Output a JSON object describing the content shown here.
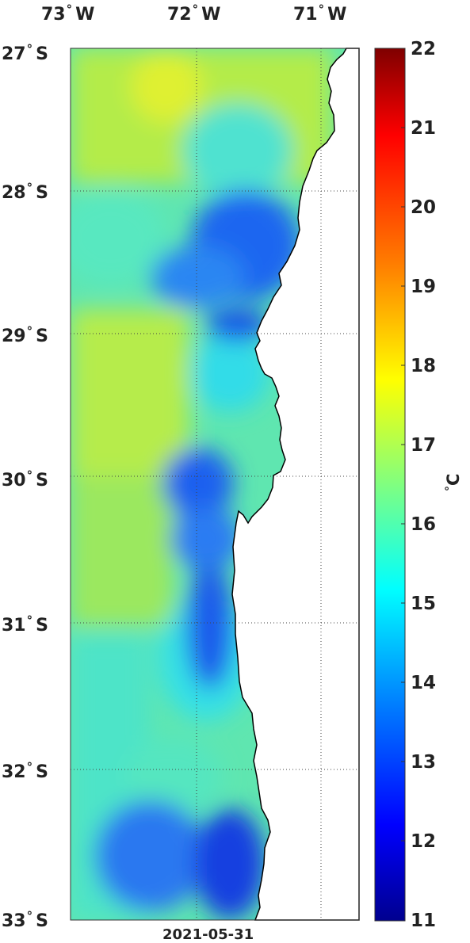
{
  "map": {
    "date": "2021-05-31",
    "lon_labels": [
      {
        "deg": "73",
        "hemi": "W"
      },
      {
        "deg": "72",
        "hemi": "W"
      },
      {
        "deg": "71",
        "hemi": "W"
      }
    ],
    "lat_labels": [
      {
        "deg": "27",
        "hemi": "S"
      },
      {
        "deg": "28",
        "hemi": "S"
      },
      {
        "deg": "29",
        "hemi": "S"
      },
      {
        "deg": "30",
        "hemi": "S"
      },
      {
        "deg": "31",
        "hemi": "S"
      },
      {
        "deg": "32",
        "hemi": "S"
      },
      {
        "deg": "33",
        "hemi": "S"
      }
    ],
    "colorbar": {
      "ticks": [
        "22",
        "21",
        "20",
        "19",
        "18",
        "17",
        "16",
        "15",
        "14",
        "13",
        "12",
        "11"
      ],
      "unit_symbol": "C",
      "colors": [
        "#7f0000",
        "#ff0000",
        "#ff8000",
        "#ffff00",
        "#80ff80",
        "#00ffff",
        "#0080ff",
        "#0000ff",
        "#00008f"
      ]
    },
    "colors": {
      "land": "#ffffff",
      "coast": "#000000",
      "grid": "#444444"
    }
  }
}
